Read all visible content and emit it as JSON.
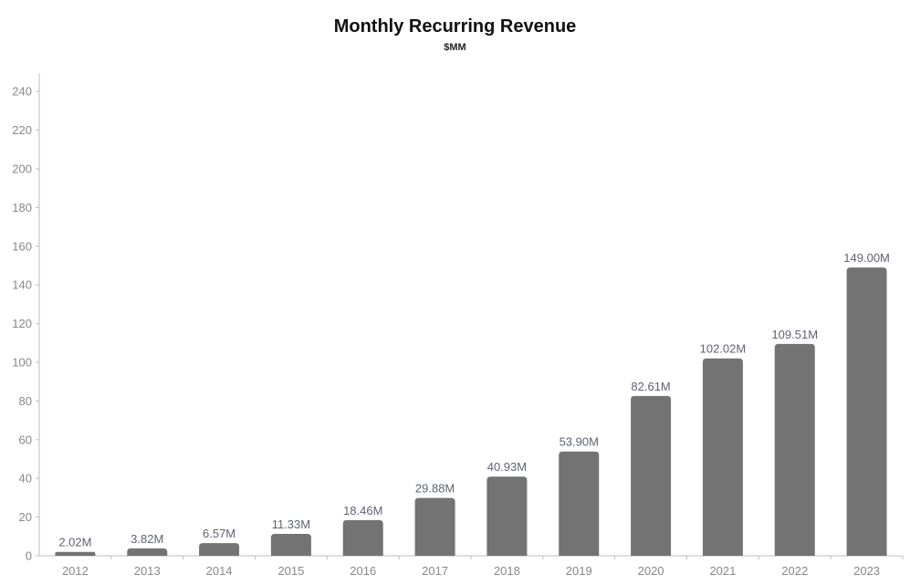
{
  "chart_data": {
    "type": "bar",
    "title": "Monthly Recurring Revenue",
    "subtitle": "$MM",
    "categories": [
      "2012",
      "2013",
      "2014",
      "2015",
      "2016",
      "2017",
      "2018",
      "2019",
      "2020",
      "2021",
      "2022",
      "2023"
    ],
    "values": [
      2.02,
      3.82,
      6.57,
      11.33,
      18.46,
      29.88,
      40.93,
      53.9,
      82.61,
      102.02,
      109.51,
      149.0
    ],
    "data_labels": [
      "2.02M",
      "3.82M",
      "6.57M",
      "11.33M",
      "18.46M",
      "29.88M",
      "40.93M",
      "53.90M",
      "82.61M",
      "102.02M",
      "109.51M",
      "149.00M"
    ],
    "y_ticks": [
      "0",
      "20",
      "40",
      "60",
      "80",
      "100",
      "120",
      "140",
      "160",
      "180",
      "200",
      "220",
      "240"
    ],
    "ylim": [
      0,
      250
    ],
    "xlabel": "",
    "ylabel": "",
    "grid": false,
    "legend": "none",
    "colors": {
      "bar": "#737373",
      "data_label": "#5f6272",
      "tick_label": "#888888",
      "axis": "#bdbdbd"
    }
  }
}
